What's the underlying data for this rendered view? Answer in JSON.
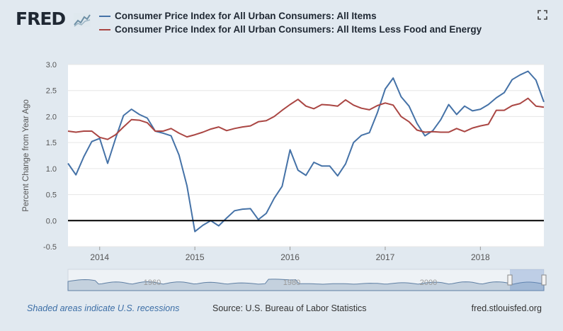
{
  "header": {
    "logo_text": "FRED",
    "logo_icon": "chart-line-icon",
    "fullscreen_icon": "expand-icon"
  },
  "legend": [
    {
      "label": "Consumer Price Index for All Urban Consumers: All Items",
      "color": "#4572a7"
    },
    {
      "label": "Consumer Price Index for All Urban Consumers: All Items Less Food and Energy",
      "color": "#aa4643"
    }
  ],
  "footer": {
    "recessions_note": "Shaded areas indicate U.S. recessions",
    "source": "Source: U.S. Bureau of Labor Statistics",
    "site": "fred.stlouisfed.org"
  },
  "navigator": {
    "labels": [
      "1960",
      "1980",
      "2000"
    ]
  },
  "chart_data": {
    "type": "line",
    "ylabel": "Percent Change from Year Ago",
    "xlabel": "",
    "ylim": [
      -0.5,
      3.0
    ],
    "yticks": [
      "3.0",
      "2.5",
      "2.0",
      "1.5",
      "1.0",
      "0.5",
      "0.0",
      "-0.5"
    ],
    "xticks": [
      "2014",
      "2015",
      "2016",
      "2017",
      "2018"
    ],
    "x_start": 2013.667,
    "x_end": 2018.667,
    "zero_line": 0.0,
    "series": [
      {
        "name": "Consumer Price Index for All Urban Consumers: All Items",
        "color": "#4572a7",
        "values": [
          1.1,
          0.88,
          1.23,
          1.52,
          1.58,
          1.1,
          1.58,
          2.02,
          2.14,
          2.04,
          1.97,
          1.72,
          1.68,
          1.63,
          1.26,
          0.67,
          -0.21,
          -0.09,
          0.0,
          -0.1,
          0.05,
          0.19,
          0.22,
          0.23,
          0.02,
          0.14,
          0.43,
          0.66,
          1.36,
          0.97,
          0.87,
          1.12,
          1.05,
          1.05,
          0.86,
          1.09,
          1.5,
          1.64,
          1.69,
          2.07,
          2.53,
          2.74,
          2.38,
          2.2,
          1.87,
          1.63,
          1.73,
          1.94,
          2.23,
          2.04,
          2.2,
          2.11,
          2.14,
          2.23,
          2.36,
          2.46,
          2.71,
          2.8,
          2.87,
          2.7,
          2.28
        ]
      },
      {
        "name": "Consumer Price Index for All Urban Consumers: All Items Less Food and Energy",
        "color": "#aa4643",
        "values": [
          1.72,
          1.7,
          1.72,
          1.72,
          1.6,
          1.56,
          1.65,
          1.8,
          1.94,
          1.93,
          1.88,
          1.72,
          1.72,
          1.77,
          1.68,
          1.61,
          1.65,
          1.7,
          1.76,
          1.8,
          1.73,
          1.77,
          1.8,
          1.82,
          1.9,
          1.92,
          2.0,
          2.12,
          2.23,
          2.33,
          2.2,
          2.15,
          2.23,
          2.22,
          2.2,
          2.32,
          2.22,
          2.16,
          2.13,
          2.21,
          2.26,
          2.22,
          2.0,
          1.9,
          1.74,
          1.7,
          1.71,
          1.7,
          1.7,
          1.77,
          1.71,
          1.78,
          1.82,
          1.85,
          2.12,
          2.12,
          2.21,
          2.25,
          2.35,
          2.2,
          2.18
        ]
      }
    ]
  }
}
